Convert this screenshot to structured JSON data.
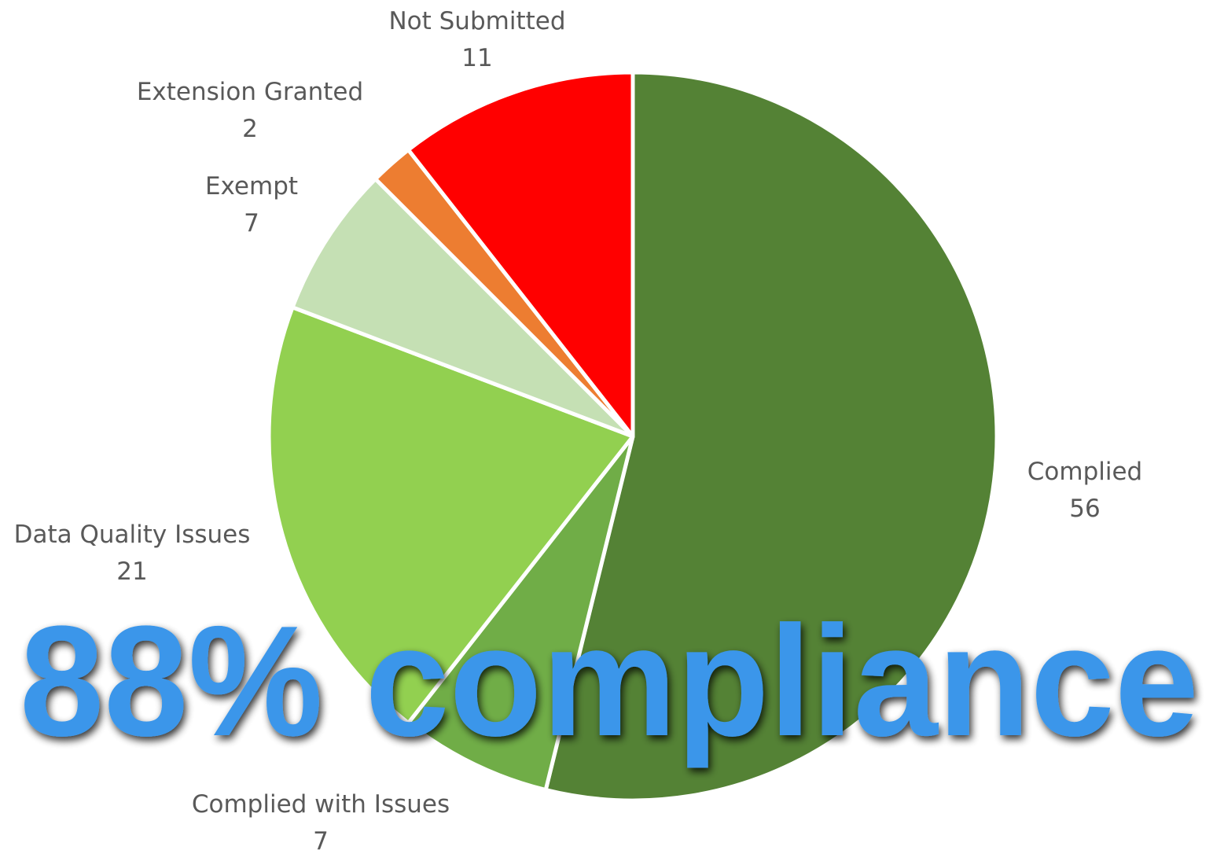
{
  "chart_data": {
    "type": "pie",
    "categories": [
      "Complied",
      "Complied with Issues",
      "Data Quality Issues",
      "Exempt",
      "Extension Granted",
      "Not Submitted"
    ],
    "values": [
      56,
      7,
      21,
      7,
      2,
      11
    ],
    "colors": [
      "#548235",
      "#70ad47",
      "#92d050",
      "#c5e0b4",
      "#ed7d31",
      "#ff0000"
    ],
    "annotation": "88% compliance"
  }
}
